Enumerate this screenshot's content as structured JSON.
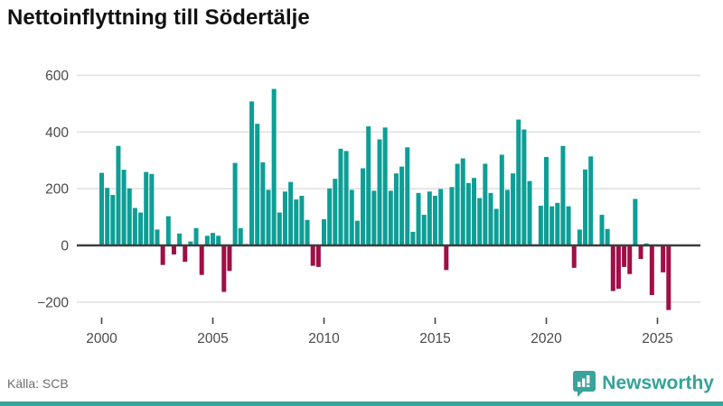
{
  "header": {
    "title": "Nettoinflyttning till Södertälje"
  },
  "footer": {
    "source": "Källa: SCB",
    "brand": "Newsworthy"
  },
  "colors": {
    "positive": "#0d9e96",
    "negative": "#9f0f46",
    "gridline": "#e2e2e2",
    "zero_axis": "#3d3d3d",
    "tick_label": "#4a4a4a",
    "brand_teal": "#35a29a"
  },
  "chart_data": {
    "type": "bar",
    "title": "Nettoinflyttning till Södertälje",
    "xlabel": "",
    "ylabel": "",
    "frequency": "quarterly",
    "start_year": 2000,
    "start_quarter": 1,
    "end_year": 2025,
    "end_quarter": 3,
    "categories": [
      "2000Q1",
      "2000Q2",
      "2000Q3",
      "2000Q4",
      "2001Q1",
      "2001Q2",
      "2001Q3",
      "2001Q4",
      "2002Q1",
      "2002Q2",
      "2002Q3",
      "2002Q4",
      "2003Q1",
      "2003Q2",
      "2003Q3",
      "2003Q4",
      "2004Q1",
      "2004Q2",
      "2004Q3",
      "2004Q4",
      "2005Q1",
      "2005Q2",
      "2005Q3",
      "2005Q4",
      "2006Q1",
      "2006Q2",
      "2006Q3",
      "2006Q4",
      "2007Q1",
      "2007Q2",
      "2007Q3",
      "2007Q4",
      "2008Q1",
      "2008Q2",
      "2008Q3",
      "2008Q4",
      "2009Q1",
      "2009Q2",
      "2009Q3",
      "2009Q4",
      "2010Q1",
      "2010Q2",
      "2010Q3",
      "2010Q4",
      "2011Q1",
      "2011Q2",
      "2011Q3",
      "2011Q4",
      "2012Q1",
      "2012Q2",
      "2012Q3",
      "2012Q4",
      "2013Q1",
      "2013Q2",
      "2013Q3",
      "2013Q4",
      "2014Q1",
      "2014Q2",
      "2014Q3",
      "2014Q4",
      "2015Q1",
      "2015Q2",
      "2015Q3",
      "2015Q4",
      "2016Q1",
      "2016Q2",
      "2016Q3",
      "2016Q4",
      "2017Q1",
      "2017Q2",
      "2017Q3",
      "2017Q4",
      "2018Q1",
      "2018Q2",
      "2018Q3",
      "2018Q4",
      "2019Q1",
      "2019Q2",
      "2019Q3",
      "2019Q4",
      "2020Q1",
      "2020Q2",
      "2020Q3",
      "2020Q4",
      "2021Q1",
      "2021Q2",
      "2021Q3",
      "2021Q4",
      "2022Q1",
      "2022Q2",
      "2022Q3",
      "2022Q4",
      "2023Q1",
      "2023Q2",
      "2023Q3",
      "2023Q4",
      "2024Q1",
      "2024Q2",
      "2024Q3",
      "2024Q4",
      "2025Q1",
      "2025Q2",
      "2025Q3"
    ],
    "values": [
      256,
      203,
      178,
      351,
      267,
      201,
      132,
      116,
      259,
      252,
      56,
      -69,
      103,
      -32,
      42,
      -58,
      14,
      61,
      -104,
      34,
      44,
      34,
      -164,
      -90,
      291,
      61,
      5,
      508,
      429,
      293,
      196,
      552,
      116,
      190,
      224,
      162,
      175,
      90,
      -72,
      -76,
      92,
      201,
      235,
      341,
      333,
      196,
      87,
      272,
      420,
      193,
      374,
      416,
      193,
      254,
      278,
      346,
      48,
      185,
      108,
      190,
      175,
      199,
      -87,
      206,
      288,
      307,
      220,
      238,
      167,
      288,
      185,
      129,
      320,
      196,
      254,
      444,
      409,
      227,
      4,
      140,
      312,
      138,
      150,
      351,
      138,
      -79,
      56,
      268,
      314,
      2,
      108,
      58,
      -161,
      -153,
      -76,
      -101,
      164,
      -48,
      7,
      -175,
      -4,
      -95,
      -228
    ],
    "yticks": [
      -200,
      0,
      200,
      400,
      600
    ],
    "ylim": [
      -260,
      640
    ],
    "xticks": [
      2000,
      2005,
      2010,
      2015,
      2020,
      2025
    ],
    "grid": true,
    "legend": false
  }
}
